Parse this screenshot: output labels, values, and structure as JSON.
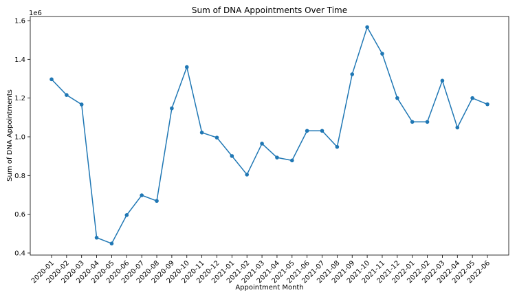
{
  "chart_data": {
    "type": "line",
    "title": "Sum of DNA Appointments Over Time",
    "xlabel": "Appointment Month",
    "ylabel": "Sum of DNA Appointments",
    "y_offset_label": "1e6",
    "categories": [
      "2020-01",
      "2020-02",
      "2020-03",
      "2020-04",
      "2020-05",
      "2020-06",
      "2020-07",
      "2020-08",
      "2020-09",
      "2020-10",
      "2020-11",
      "2020-12",
      "2021-01",
      "2021-02",
      "2021-03",
      "2021-04",
      "2021-05",
      "2021-06",
      "2021-07",
      "2021-08",
      "2021-09",
      "2021-10",
      "2021-11",
      "2021-12",
      "2022-01",
      "2022-02",
      "2022-03",
      "2022-04",
      "2022-05",
      "2022-06"
    ],
    "series": [
      {
        "values": [
          1.297,
          1.216,
          1.167,
          0.479,
          0.449,
          0.596,
          0.698,
          0.669,
          1.147,
          1.36,
          1.022,
          0.996,
          0.901,
          0.805,
          0.965,
          0.893,
          0.878,
          1.031,
          1.031,
          0.948,
          1.323,
          1.566,
          1.429,
          1.2,
          1.077,
          1.077,
          1.29,
          1.048,
          1.2,
          1.168
        ]
      }
    ],
    "y_ticks": [
      "0.4",
      "0.6",
      "0.8",
      "1.0",
      "1.2",
      "1.4",
      "1.6"
    ],
    "ylim": [
      0.39,
      1.6
    ],
    "grid": false,
    "line_color": "#1f77b4"
  }
}
